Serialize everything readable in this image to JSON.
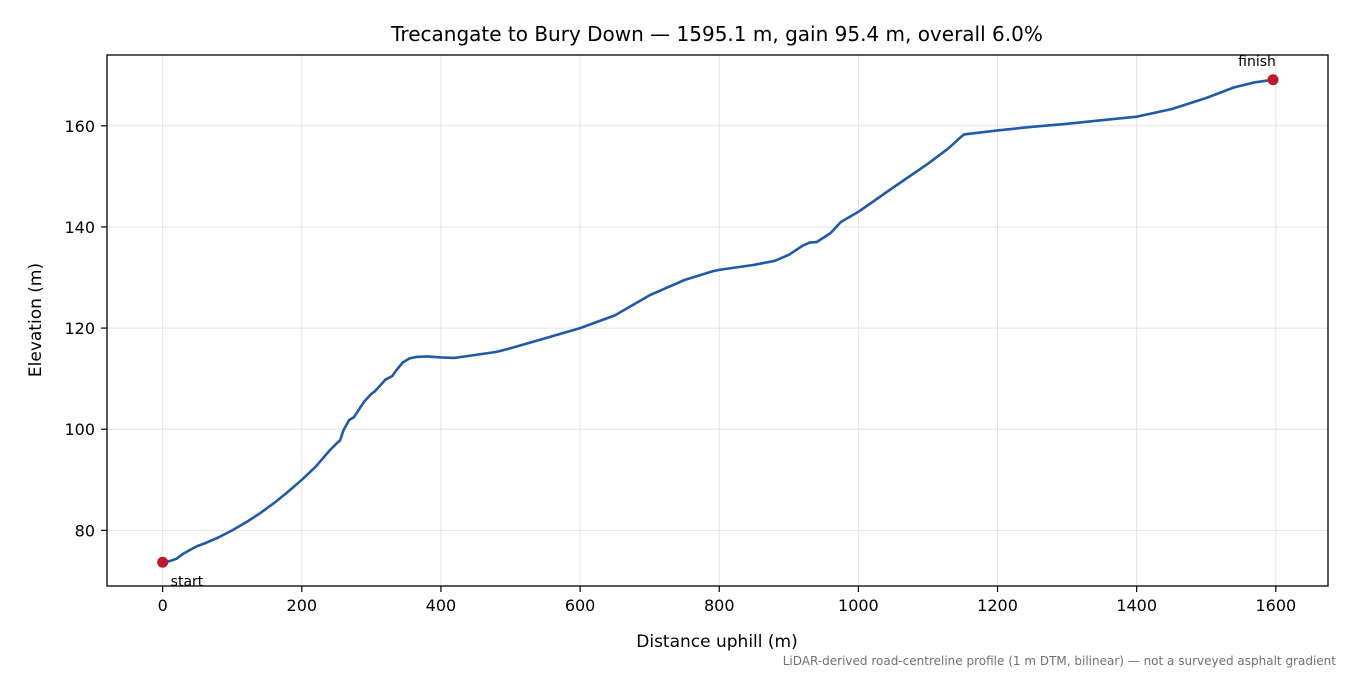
{
  "chart_data": {
    "type": "line",
    "title": "Trecangate to Bury Down — 1595.1 m, gain 95.4 m, overall 6.0%",
    "xlabel": "Distance uphill (m)",
    "ylabel": "Elevation (m)",
    "xlim": [
      -80,
      1675
    ],
    "ylim": [
      69,
      174
    ],
    "xticks": [
      0,
      200,
      400,
      600,
      800,
      1000,
      1200,
      1400,
      1600
    ],
    "yticks": [
      80,
      100,
      120,
      140,
      160
    ],
    "grid": true,
    "line_color": "#1f5aa8",
    "marker_color": "#c0182a",
    "series": [
      {
        "x": [
          0,
          10,
          20,
          30,
          40,
          50,
          60,
          80,
          100,
          120,
          140,
          160,
          180,
          200,
          220,
          240,
          250,
          255,
          260,
          268,
          275,
          285,
          290,
          300,
          305,
          315,
          320,
          330,
          335,
          345,
          355,
          365,
          380,
          400,
          420,
          440,
          460,
          480,
          500,
          550,
          600,
          650,
          700,
          750,
          790,
          800,
          850,
          880,
          900,
          920,
          930,
          940,
          960,
          975,
          1000,
          1050,
          1100,
          1130,
          1145,
          1152,
          1200,
          1250,
          1300,
          1350,
          1400,
          1450,
          1500,
          1540,
          1570,
          1596
        ],
        "y": [
          73.7,
          73.9,
          74.4,
          75.4,
          76.2,
          76.9,
          77.4,
          78.6,
          80.0,
          81.6,
          83.4,
          85.4,
          87.6,
          90.0,
          92.6,
          95.8,
          97.2,
          97.8,
          99.8,
          101.8,
          102.4,
          104.5,
          105.5,
          107.0,
          107.5,
          109.0,
          109.8,
          110.5,
          111.5,
          113.2,
          114.0,
          114.3,
          114.4,
          114.2,
          114.1,
          114.5,
          114.9,
          115.3,
          116.0,
          118.0,
          120.0,
          122.5,
          126.5,
          129.5,
          131.2,
          131.5,
          132.5,
          133.3,
          134.5,
          136.3,
          136.9,
          137.0,
          138.8,
          141.0,
          143.0,
          147.8,
          152.5,
          155.6,
          157.5,
          158.3,
          159.1,
          159.8,
          160.4,
          161.1,
          161.8,
          163.3,
          165.5,
          167.6,
          168.6,
          169.1
        ]
      }
    ],
    "annotations": [
      {
        "text": "start",
        "x": 0,
        "y": 73.7
      },
      {
        "text": "finish",
        "x": 1596,
        "y": 169.1
      }
    ],
    "footnote": "LiDAR-derived road-centreline profile (1 m DTM, bilinear) — not a surveyed asphalt gradient"
  }
}
